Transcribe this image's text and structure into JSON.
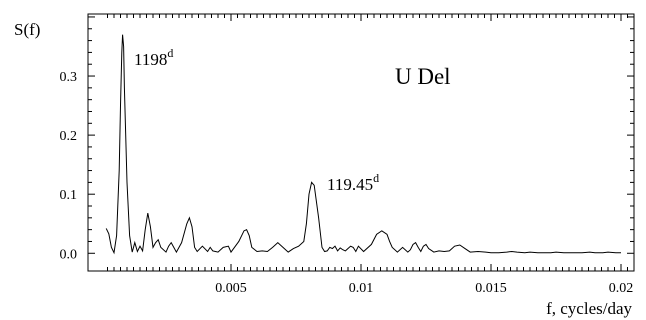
{
  "chart_data": {
    "type": "line",
    "title": "",
    "star_label": "U Del",
    "xlabel": "f, cycles/day",
    "ylabel": "S(f)",
    "xlim": [
      -0.0005,
      0.0205
    ],
    "ylim": [
      -0.03,
      0.405
    ],
    "x_ticks": [
      0.005,
      0.01,
      0.015,
      0.02
    ],
    "x_tick_labels": [
      "0.005",
      "0.01",
      "0.015",
      "0.02"
    ],
    "y_ticks": [
      0.0,
      0.1,
      0.2,
      0.3
    ],
    "y_tick_labels": [
      "0.0",
      "0.1",
      "0.2",
      "0.3"
    ],
    "grid": false,
    "annotations": [
      {
        "text": "1198",
        "superscript": "d",
        "x": 0.00083,
        "y": 0.37
      },
      {
        "text": "119.45",
        "superscript": "d",
        "x": 0.00837,
        "y": 0.122
      }
    ],
    "series": [
      {
        "x": [
          0.0002,
          0.0003,
          0.0004,
          0.0005,
          0.0006,
          0.0007,
          0.00075,
          0.0008,
          0.00083,
          0.00087,
          0.0009,
          0.001,
          0.0011,
          0.0012,
          0.0013,
          0.0014,
          0.0015,
          0.0016,
          0.0017,
          0.0018,
          0.0019,
          0.002,
          0.0021,
          0.0022,
          0.0023,
          0.0025,
          0.0026,
          0.0027,
          0.0028,
          0.0029,
          0.0031,
          0.0033,
          0.0034,
          0.0035,
          0.0036,
          0.0037,
          0.0039,
          0.0041,
          0.0042,
          0.0043,
          0.0045,
          0.0047,
          0.0049,
          0.005,
          0.0051,
          0.0053,
          0.0055,
          0.0056,
          0.0057,
          0.0058,
          0.006,
          0.0062,
          0.0064,
          0.0066,
          0.0068,
          0.007,
          0.0072,
          0.0074,
          0.0076,
          0.0078,
          0.0079,
          0.008,
          0.0081,
          0.0082,
          0.00837,
          0.0085,
          0.0086,
          0.0087,
          0.0088,
          0.0089,
          0.009,
          0.0091,
          0.0092,
          0.0093,
          0.0094,
          0.0095,
          0.0096,
          0.0097,
          0.0098,
          0.0099,
          0.0101,
          0.0104,
          0.0106,
          0.0108,
          0.011,
          0.0111,
          0.0112,
          0.0114,
          0.0116,
          0.0118,
          0.0119,
          0.012,
          0.0121,
          0.0122,
          0.0123,
          0.0124,
          0.0125,
          0.0126,
          0.0128,
          0.013,
          0.0132,
          0.0134,
          0.0136,
          0.0138,
          0.014,
          0.0142,
          0.0145,
          0.0148,
          0.015,
          0.0153,
          0.0156,
          0.0158,
          0.016,
          0.0163,
          0.0165,
          0.0168,
          0.017,
          0.0173,
          0.0175,
          0.0178,
          0.018,
          0.0183,
          0.0185,
          0.0188,
          0.019,
          0.0193,
          0.0195,
          0.0198,
          0.02
        ],
        "y": [
          0.042,
          0.033,
          0.01,
          0.001,
          0.03,
          0.14,
          0.25,
          0.34,
          0.37,
          0.35,
          0.28,
          0.12,
          0.03,
          0.002,
          0.018,
          0.003,
          0.012,
          0.004,
          0.04,
          0.068,
          0.045,
          0.01,
          0.018,
          0.023,
          0.01,
          0.002,
          0.012,
          0.018,
          0.01,
          0.002,
          0.018,
          0.05,
          0.06,
          0.045,
          0.01,
          0.003,
          0.012,
          0.003,
          0.01,
          0.004,
          0.002,
          0.01,
          0.012,
          0.002,
          0.008,
          0.02,
          0.038,
          0.04,
          0.03,
          0.01,
          0.003,
          0.004,
          0.003,
          0.01,
          0.018,
          0.01,
          0.002,
          0.008,
          0.012,
          0.02,
          0.05,
          0.1,
          0.12,
          0.115,
          0.06,
          0.01,
          0.003,
          0.004,
          0.01,
          0.008,
          0.012,
          0.004,
          0.009,
          0.006,
          0.004,
          0.008,
          0.012,
          0.01,
          0.003,
          0.012,
          0.003,
          0.015,
          0.032,
          0.038,
          0.032,
          0.02,
          0.01,
          0.002,
          0.01,
          0.002,
          0.006,
          0.015,
          0.018,
          0.01,
          0.003,
          0.012,
          0.015,
          0.008,
          0.002,
          0.004,
          0.003,
          0.004,
          0.012,
          0.014,
          0.008,
          0.002,
          0.003,
          0.002,
          0.001,
          0.001,
          0.002,
          0.003,
          0.002,
          0.001,
          0.002,
          0.001,
          0.001,
          0.001,
          0.002,
          0.001,
          0.001,
          0.001,
          0.001,
          0.002,
          0.001,
          0.001,
          0.002,
          0.001,
          0.001
        ]
      }
    ]
  }
}
